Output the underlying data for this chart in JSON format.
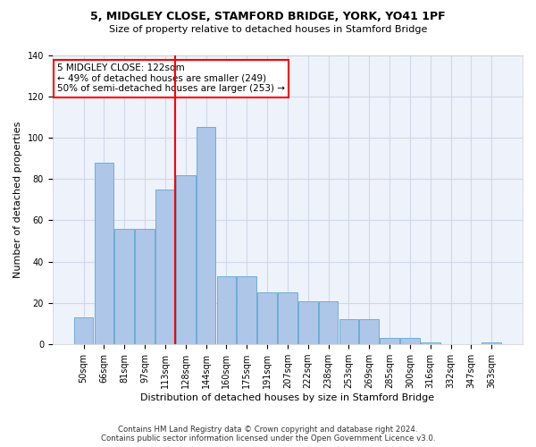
{
  "title1": "5, MIDGLEY CLOSE, STAMFORD BRIDGE, YORK, YO41 1PF",
  "title2": "Size of property relative to detached houses in Stamford Bridge",
  "xlabel": "Distribution of detached houses by size in Stamford Bridge",
  "ylabel": "Number of detached properties",
  "categories": [
    "50sqm",
    "66sqm",
    "81sqm",
    "97sqm",
    "113sqm",
    "128sqm",
    "144sqm",
    "160sqm",
    "175sqm",
    "191sqm",
    "207sqm",
    "222sqm",
    "238sqm",
    "253sqm",
    "269sqm",
    "285sqm",
    "300sqm",
    "316sqm",
    "332sqm",
    "347sqm",
    "363sqm"
  ],
  "bar_values": [
    13,
    88,
    56,
    56,
    75,
    82,
    105,
    33,
    33,
    25,
    25,
    21,
    21,
    12,
    12,
    3,
    3,
    1,
    0,
    0,
    1
  ],
  "bar_color": "#aec6e8",
  "bar_edge_color": "#6baed6",
  "vline_x": 4.5,
  "vline_color": "red",
  "annotation_title": "5 MIDGLEY CLOSE: 122sqm",
  "annotation_line1": "← 49% of detached houses are smaller (249)",
  "annotation_line2": "50% of semi-detached houses are larger (253) →",
  "annotation_box_color": "white",
  "annotation_box_edge": "red",
  "grid_color": "#d0d8e8",
  "background_color": "#eef2fa",
  "footer1": "Contains HM Land Registry data © Crown copyright and database right 2024.",
  "footer2": "Contains public sector information licensed under the Open Government Licence v3.0.",
  "ylim": [
    0,
    140
  ],
  "yticks": [
    0,
    20,
    40,
    60,
    80,
    100,
    120,
    140
  ]
}
